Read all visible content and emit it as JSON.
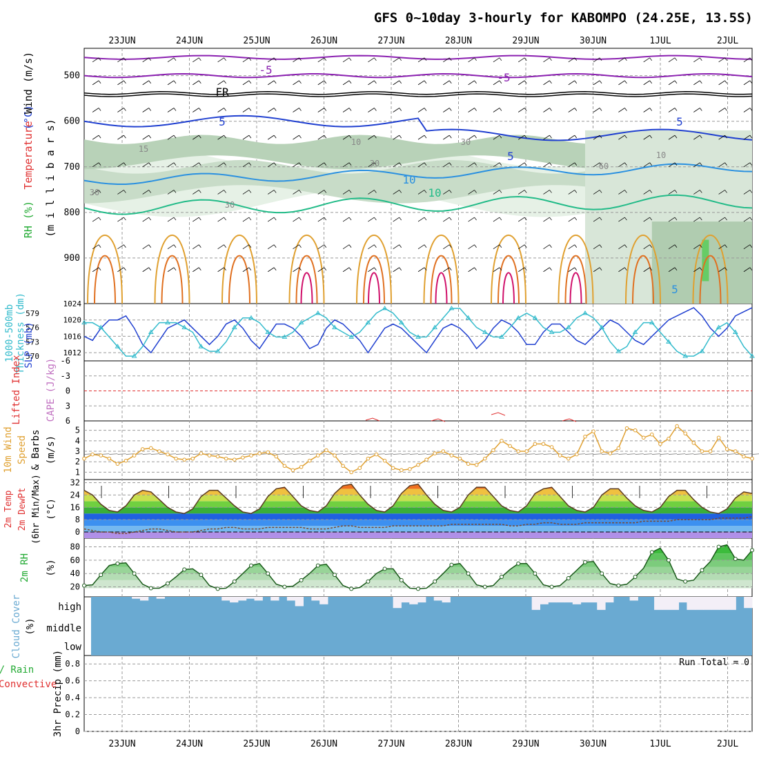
{
  "title": "GFS 0~10day 3-hourly for KABOMPO (24.25E, 13.5S)",
  "date_ticks": [
    "23JUN",
    "24JUN",
    "25JUN",
    "26JUN",
    "27JUN",
    "28JUN",
    "29JUN",
    "30JUN",
    "1JUL",
    "2JUL"
  ],
  "colors": {
    "dark_blue": "#1f3fd0",
    "cyan": "#33bbcc",
    "orange": "#e0a030",
    "purple": "#8a1fb0",
    "green": "#22aa33",
    "red": "#e03030",
    "cloud_blue": "#6aaad2",
    "mauve": "#c070c0"
  },
  "chart_data": [
    {
      "type": "contour",
      "panel": "upper-air",
      "ylabel_parts": [
        {
          "text": "RH (%)",
          "color": "#22aa33"
        },
        {
          "text": "Temperature",
          "color": "#e03030"
        },
        {
          "text": "(°C)",
          "color": "#1f3fd0"
        },
        {
          "text": "Wind (m/s)",
          "color": "#000"
        }
      ],
      "ylabel2": "(m i l l i b a r s)",
      "yticks": [
        500,
        600,
        700,
        800,
        900
      ],
      "ylim": [
        1000,
        440
      ],
      "labels": [
        "-5",
        "-5",
        "FR",
        "5",
        "5",
        "5",
        "10",
        "10",
        "15",
        "10",
        "30",
        "30",
        "30",
        "10",
        "30",
        "60",
        "5"
      ]
    },
    {
      "type": "line",
      "panel": "slp-thickness",
      "ylabel_left": "Thickness (dm)",
      "ylabel_left2": "1000-500mb",
      "ylabel_right": "SLP (mb)",
      "yticks_left": [
        "579",
        "576",
        "573",
        "570"
      ],
      "yticks_right": [
        "1024",
        "1020",
        "1016",
        "1012"
      ],
      "series": [
        {
          "name": "SLP (mb)",
          "values": [
            1016,
            1015,
            1018,
            1020,
            1020,
            1021,
            1018,
            1014,
            1012,
            1015,
            1018,
            1019,
            1020,
            1018,
            1016,
            1014,
            1016,
            1019,
            1020,
            1018,
            1015,
            1013,
            1016,
            1019,
            1019,
            1018,
            1016,
            1013,
            1014,
            1018,
            1020,
            1019,
            1017,
            1015,
            1012,
            1015,
            1018,
            1019,
            1018,
            1016,
            1014,
            1012,
            1015,
            1018,
            1019,
            1018,
            1016,
            1013,
            1015,
            1018,
            1020,
            1019,
            1017,
            1014,
            1014,
            1017,
            1019,
            1019,
            1017,
            1015,
            1014,
            1016,
            1018,
            1020,
            1019,
            1017,
            1015,
            1014,
            1016,
            1018,
            1020,
            1021,
            1022,
            1023,
            1021,
            1018,
            1016,
            1018,
            1021,
            1022,
            1023
          ]
        },
        {
          "name": "Thickness (dm)",
          "values": [
            577,
            577,
            576,
            574,
            572,
            570,
            570,
            572,
            575,
            577,
            577,
            577,
            576,
            575,
            572,
            571,
            571,
            573,
            576,
            578,
            578,
            577,
            575,
            574,
            574,
            575,
            577,
            578,
            579,
            578,
            576,
            575,
            574,
            575,
            577,
            579,
            580,
            579,
            577,
            575,
            574,
            574,
            576,
            578,
            580,
            580,
            578,
            576,
            575,
            574,
            574,
            576,
            578,
            579,
            578,
            576,
            575,
            575,
            576,
            578,
            579,
            578,
            576,
            573,
            571,
            572,
            575,
            577,
            577,
            575,
            573,
            571,
            570,
            570,
            571,
            574,
            576,
            577,
            575,
            572,
            570
          ]
        }
      ]
    },
    {
      "type": "line",
      "panel": "stability",
      "ylabel_left": "Lifted Index",
      "ylabel_right": "CAPE (J/kg)",
      "yticks": [
        "-6",
        "-3",
        "0",
        "3",
        "6"
      ],
      "ylim": [
        -6,
        6
      ],
      "series": [
        {
          "name": "Lifted Index",
          "values": [
            0
          ]
        }
      ]
    },
    {
      "type": "line",
      "panel": "wind10m",
      "ylabel_lines": [
        "10m Wind",
        "Speed",
        "& Barbs"
      ],
      "units": "(m/s)",
      "yticks": [
        "1",
        "2",
        "3",
        "4",
        "5"
      ],
      "ylim": [
        0.3,
        5.9
      ],
      "series": [
        {
          "name": "Speed",
          "values": [
            2.3,
            2.7,
            2.6,
            2.3,
            1.8,
            2.1,
            2.6,
            3.2,
            3.3,
            3.0,
            2.7,
            2.3,
            2.2,
            2.3,
            2.8,
            2.6,
            2.5,
            2.3,
            2.2,
            2.4,
            2.6,
            2.8,
            2.9,
            2.5,
            1.6,
            1.2,
            1.5,
            2.1,
            2.6,
            3.1,
            2.6,
            1.6,
            1.0,
            1.4,
            2.3,
            2.7,
            2.1,
            1.4,
            1.2,
            1.3,
            1.7,
            2.2,
            2.8,
            3.0,
            2.6,
            2.3,
            1.8,
            1.7,
            2.3,
            3.1,
            4.0,
            3.5,
            3.0,
            3.0,
            3.7,
            3.7,
            3.4,
            2.6,
            2.3,
            2.7,
            4.4,
            4.9,
            3.0,
            2.8,
            3.3,
            5.2,
            5.0,
            4.3,
            4.6,
            3.7,
            4.2,
            5.4,
            4.7,
            3.8,
            3.0,
            3.0,
            4.3,
            3.2,
            3.0,
            2.5,
            2.3
          ]
        }
      ]
    },
    {
      "type": "area",
      "panel": "temperature",
      "ylabel_lines": [
        "2m Temp",
        "2m DewPt",
        "(6hr Min/Max)"
      ],
      "units": "(°C)",
      "yticks": [
        "32",
        "24",
        "16",
        "8",
        "0"
      ],
      "ylim": [
        -4,
        34
      ],
      "series": [
        {
          "name": "2m Temp",
          "values": [
            27,
            24,
            18,
            14,
            13,
            17,
            24,
            27,
            26,
            21,
            16,
            13,
            12,
            15,
            23,
            27,
            27,
            22,
            17,
            13,
            12,
            15,
            23,
            28,
            29,
            23,
            17,
            14,
            13,
            17,
            25,
            30,
            31,
            24,
            18,
            14,
            13,
            17,
            25,
            30,
            31,
            24,
            18,
            14,
            13,
            16,
            24,
            29,
            29,
            23,
            17,
            14,
            13,
            17,
            25,
            28,
            29,
            23,
            17,
            14,
            13,
            16,
            24,
            28,
            28,
            22,
            17,
            14,
            13,
            16,
            23,
            27,
            27,
            21,
            16,
            13,
            12,
            15,
            22,
            26,
            25
          ]
        },
        {
          "name": "2m DewPt",
          "values": [
            2,
            1,
            0,
            0,
            -1,
            -1,
            0,
            1,
            2,
            2,
            1,
            0,
            0,
            0,
            1,
            2,
            2,
            3,
            3,
            2,
            2,
            2,
            3,
            3,
            3,
            3,
            3,
            2,
            2,
            2,
            3,
            4,
            4,
            3,
            3,
            3,
            3,
            4,
            4,
            4,
            4,
            4,
            4,
            4,
            5,
            5,
            5,
            5,
            5,
            5,
            5,
            4,
            4,
            5,
            5,
            6,
            6,
            5,
            5,
            5,
            6,
            6,
            6,
            6,
            6,
            6,
            6,
            7,
            7,
            7,
            7,
            8,
            8,
            8,
            8,
            8,
            9,
            9,
            9,
            9,
            10
          ]
        }
      ]
    },
    {
      "type": "area",
      "panel": "rh2m",
      "ylabel": "2m RH",
      "units": "(%)",
      "yticks": [
        "20",
        "40",
        "60",
        "80"
      ],
      "ylim": [
        5,
        93
      ],
      "series": [
        {
          "name": "2m RH",
          "values": [
            22,
            23,
            38,
            52,
            55,
            56,
            40,
            24,
            18,
            18,
            25,
            35,
            46,
            47,
            38,
            22,
            17,
            18,
            28,
            40,
            52,
            55,
            40,
            24,
            20,
            21,
            30,
            40,
            52,
            54,
            38,
            22,
            17,
            19,
            28,
            40,
            47,
            47,
            30,
            18,
            17,
            18,
            28,
            40,
            53,
            55,
            40,
            23,
            20,
            22,
            35,
            46,
            55,
            55,
            40,
            23,
            20,
            22,
            33,
            45,
            57,
            58,
            40,
            25,
            22,
            24,
            35,
            48,
            72,
            78,
            60,
            32,
            28,
            30,
            45,
            58,
            80,
            83,
            62,
            60,
            75
          ]
        }
      ]
    },
    {
      "type": "bar",
      "panel": "cloud",
      "ylabel": "Cloud Cover",
      "units": "(%)",
      "layers": [
        "high",
        "middle",
        "low"
      ],
      "series": [
        {
          "name": "high",
          "values": [
            0,
            0,
            0,
            0,
            0,
            10,
            20,
            0,
            10,
            0,
            0,
            0,
            0,
            0,
            0,
            0,
            20,
            30,
            20,
            10,
            20,
            0,
            20,
            0,
            20,
            50,
            0,
            20,
            40,
            0,
            0,
            0,
            0,
            0,
            0,
            0,
            0,
            60,
            30,
            40,
            30,
            0,
            20,
            30,
            0,
            0,
            0,
            0,
            0,
            0,
            0,
            0,
            0,
            0,
            70,
            40,
            30,
            30,
            30,
            40,
            30,
            30,
            70,
            30,
            0,
            0,
            20,
            0,
            0,
            70,
            70,
            70,
            30,
            70,
            70,
            70,
            70,
            70,
            70,
            0,
            60
          ]
        }
      ]
    },
    {
      "type": "bar",
      "panel": "precip",
      "ylabel_parts": [
        {
          "text": "Total / Rain",
          "color": "#22aa33"
        },
        {
          "text": "Convective",
          "color": "#e03030"
        },
        {
          "text": "3hr Precip (mm)",
          "color": "#000"
        }
      ],
      "yticks": [
        "0",
        "0.2",
        "0.4",
        "0.6",
        "0.8"
      ],
      "ylim": [
        0,
        0.9
      ],
      "run_total": "Run Total = 0",
      "series": [
        {
          "name": "Total / Rain",
          "values": [
            0
          ]
        }
      ]
    }
  ]
}
